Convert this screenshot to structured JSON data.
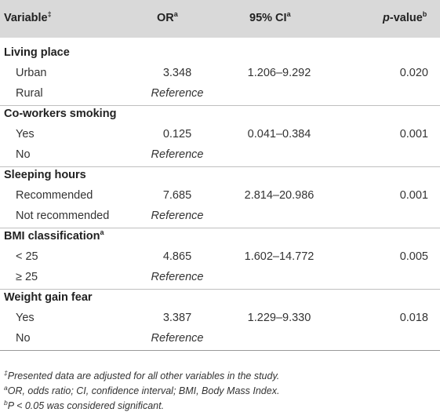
{
  "header": {
    "variable": "Variable",
    "variable_mark": "‡",
    "or": "OR",
    "or_mark": "a",
    "ci": "95% CI",
    "ci_mark": "a",
    "p": "p",
    "p_rest": "-value",
    "p_mark": "b"
  },
  "groups": [
    {
      "title": "Living place",
      "mark": "",
      "rows": [
        {
          "label": "Urban",
          "or": "3.348",
          "ci": "1.206–9.292",
          "p": "0.020"
        },
        {
          "label": "Rural",
          "or": "Reference",
          "ci": "",
          "p": ""
        }
      ]
    },
    {
      "title": "Co-workers smoking",
      "mark": "",
      "rows": [
        {
          "label": "Yes",
          "or": "0.125",
          "ci": "0.041–0.384",
          "p": "0.001"
        },
        {
          "label": "No",
          "or": "Reference",
          "ci": "",
          "p": ""
        }
      ]
    },
    {
      "title": "Sleeping hours",
      "mark": "",
      "rows": [
        {
          "label": "Recommended",
          "or": "7.685",
          "ci": "2.814–20.986",
          "p": "0.001"
        },
        {
          "label": "Not recommended",
          "or": "Reference",
          "ci": "",
          "p": ""
        }
      ]
    },
    {
      "title": "BMI classification",
      "mark": "a",
      "rows": [
        {
          "label": "< 25",
          "or": "4.865",
          "ci": "1.602–14.772",
          "p": "0.005"
        },
        {
          "label": "≥ 25",
          "or": "Reference",
          "ci": "",
          "p": ""
        }
      ]
    },
    {
      "title": "Weight gain fear",
      "mark": "",
      "rows": [
        {
          "label": "Yes",
          "or": "3.387",
          "ci": "1.229–9.330",
          "p": "0.018"
        },
        {
          "label": "No",
          "or": "Reference",
          "ci": "",
          "p": ""
        }
      ]
    }
  ],
  "footnotes": {
    "n1_mark": "‡",
    "n1": "Presented data are adjusted for all other variables in the study.",
    "n2_mark": "a",
    "n2": "OR, odds ratio; CI, confidence interval; BMI, Body Mass Index.",
    "n3_mark": "b",
    "n3": "P < 0.05 was considered significant."
  }
}
